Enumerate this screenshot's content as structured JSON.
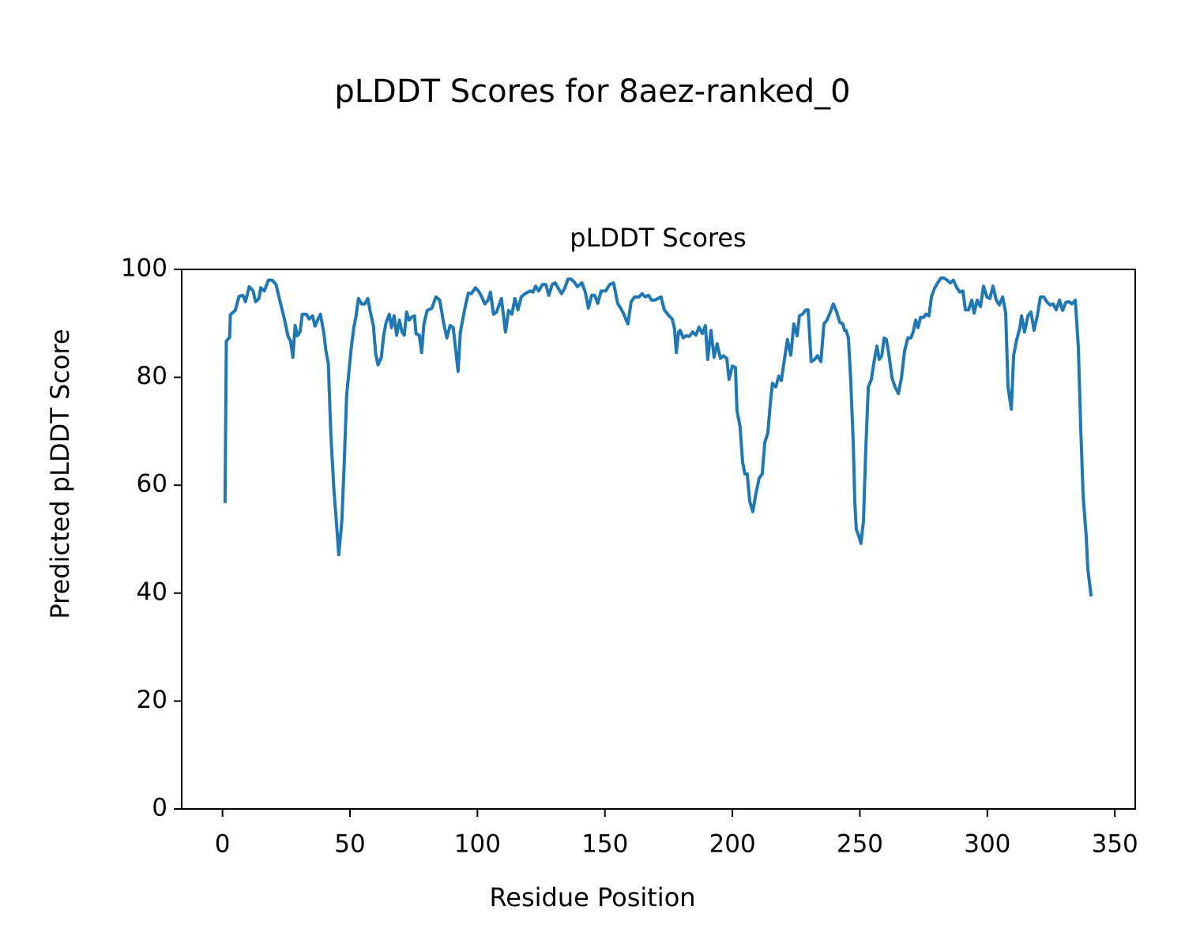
{
  "chart_data": {
    "type": "line",
    "title": "pLDDT Scores for 8aez-ranked_0",
    "subtitle": "pLDDT Scores",
    "xlabel": "Residue Position",
    "ylabel": "Predicted pLDDT Score",
    "xlim": [
      -16,
      358
    ],
    "xticks": [
      0,
      50,
      100,
      150,
      200,
      250,
      300,
      350
    ],
    "ylim": [
      0,
      100
    ],
    "yticks": [
      0,
      20,
      40,
      60,
      80,
      100
    ],
    "series": [
      {
        "color": "#1f77b4",
        "x": [
          1,
          1.5,
          2.8,
          3.1,
          5,
          6.5,
          8,
          9,
          10.5,
          12,
          13,
          14.3,
          15,
          16.4,
          18,
          19.5,
          21,
          22.6,
          24.2,
          25.7,
          26.7,
          27.6,
          28.5,
          29.4,
          30.4,
          31.3,
          32.9,
          34,
          35.3,
          36.3,
          37.5,
          38.4,
          39.7,
          40.6,
          41.5,
          42.5,
          43.7,
          45,
          45.6,
          46.8,
          47.7,
          48.7,
          49.6,
          50.5,
          51.5,
          52.4,
          53.3,
          54.6,
          55.8,
          57,
          58,
          59.2,
          60.1,
          61,
          62.3,
          63.2,
          64.2,
          65.4,
          66.3,
          67.3,
          68.3,
          69.4,
          70.4,
          71.3,
          72.2,
          73.2,
          74.1,
          75.3,
          75.9,
          77.2,
          78.1,
          79,
          80.3,
          82.1,
          83.7,
          85.2,
          86.8,
          88,
          89.3,
          90.5,
          92.4,
          93.3,
          95.2,
          96.4,
          97.6,
          99.2,
          100.4,
          101.7,
          102.9,
          104.2,
          105.1,
          106.3,
          107.5,
          109.4,
          111,
          112.2,
          113.5,
          114.7,
          115.9,
          117.2,
          118.7,
          120.6,
          121.8,
          122.8,
          124,
          125.5,
          126.8,
          128,
          129.3,
          130.5,
          131.7,
          133,
          134.2,
          135.5,
          136.7,
          137.9,
          139.2,
          141,
          142.3,
          143.5,
          144.8,
          146,
          147.2,
          148.5,
          150.3,
          151.9,
          153.4,
          155,
          156.2,
          157.4,
          159,
          160.3,
          161.6,
          163.4,
          164.6,
          165.8,
          167.1,
          168.3,
          169.5,
          170.8,
          172,
          173.3,
          175.1,
          176.4,
          177.3,
          178,
          178.9,
          179.5,
          180.7,
          181.9,
          183.2,
          184.4,
          185.7,
          186.9,
          188.2,
          189.4,
          190.3,
          191.6,
          192.8,
          194,
          195.3,
          196.5,
          197.8,
          198.7,
          200,
          201.2,
          201.8,
          203,
          204,
          204.9,
          205.8,
          206.8,
          208,
          209.2,
          210.5,
          211.7,
          212.7,
          213.9,
          214.9,
          215.7,
          217,
          218.2,
          219.2,
          220.4,
          221.6,
          222.9,
          224.1,
          225.4,
          226.3,
          227.5,
          228.8,
          229.7,
          230.9,
          232.2,
          233.4,
          234.7,
          235.9,
          237.1,
          238.4,
          239.6,
          240.9,
          242.1,
          243.3,
          244,
          244.6,
          245.5,
          246.4,
          247.4,
          248,
          248.6,
          249.5,
          250.4,
          251.4,
          252.3,
          253.3,
          254.5,
          255.7,
          256.7,
          257.6,
          258.6,
          259.5,
          260.4,
          261.4,
          262.6,
          263.8,
          265.1,
          266.3,
          267.5,
          268.8,
          270,
          270.9,
          271.9,
          272.8,
          273.8,
          275,
          275.9,
          277.1,
          278.1,
          279.3,
          280.5,
          281.8,
          283,
          284.2,
          285.5,
          286.7,
          288,
          289.2,
          290.4,
          291.4,
          292.6,
          293.9,
          294.8,
          296,
          297.3,
          298.5,
          299.8,
          301,
          302.2,
          303.5,
          304.7,
          306,
          307.2,
          308.1,
          309.4,
          310.3,
          311.5,
          312.8,
          313.4,
          314.6,
          315.9,
          317.1,
          318.3,
          319.6,
          320.8,
          322.1,
          323.3,
          324.6,
          325.8,
          327,
          328.3,
          329.5,
          330.8,
          332,
          333.2,
          334.5,
          335.7,
          336.6,
          337.6,
          338.8,
          339.4,
          340.7
        ],
        "values": [
          56.7,
          86.7,
          87.4,
          91.6,
          92.4,
          95,
          95.2,
          94,
          96.8,
          96,
          94,
          94.6,
          96.6,
          96,
          98,
          98,
          97.2,
          94,
          91,
          87.6,
          86.7,
          83.7,
          89.6,
          87.7,
          88.4,
          91.7,
          91.7,
          90.8,
          91.4,
          89.5,
          90.8,
          91.7,
          88.4,
          84.8,
          82.6,
          69.4,
          59.2,
          51.1,
          47.1,
          53.3,
          63.5,
          76.7,
          81.1,
          85.5,
          89.2,
          91.4,
          94.6,
          93.6,
          93.6,
          94.6,
          92.1,
          89.5,
          84.3,
          82.3,
          83.7,
          87.7,
          90.2,
          91.7,
          89.2,
          91.4,
          87.8,
          90.6,
          88.4,
          87.8,
          92.1,
          90.6,
          91.1,
          91.4,
          88.1,
          87.8,
          84.6,
          89.9,
          92.4,
          92.8,
          94.9,
          94.3,
          89.9,
          87.3,
          89.6,
          89.2,
          81.1,
          88.4,
          93.1,
          95.6,
          95.5,
          96.6,
          96,
          94.9,
          93.6,
          94.3,
          95.8,
          91.7,
          92.1,
          94.6,
          88.4,
          92.4,
          91.7,
          94.6,
          92.5,
          94.9,
          95.5,
          96,
          95.8,
          96.9,
          96,
          97.2,
          97.2,
          95.2,
          97.2,
          97.5,
          96.5,
          95.5,
          96.5,
          98.2,
          98.2,
          97.7,
          96.8,
          97.5,
          95.8,
          92.8,
          95.2,
          95.2,
          93.7,
          96,
          96,
          97.2,
          97.5,
          93.7,
          92.8,
          91.7,
          89.9,
          94,
          94.9,
          94.9,
          95.5,
          94.9,
          95.2,
          94.3,
          94.3,
          94.6,
          94.9,
          92.5,
          91.4,
          90.8,
          89,
          84.6,
          88.4,
          88.7,
          87.3,
          87.7,
          87.6,
          88.4,
          87.8,
          89.3,
          88.1,
          89.6,
          83.3,
          88.7,
          83.7,
          86.2,
          83.5,
          84,
          83.5,
          79.6,
          82.1,
          81.8,
          73.8,
          70.9,
          64.3,
          62.1,
          62.1,
          57,
          55.1,
          58.4,
          61.3,
          62.1,
          67.9,
          69.7,
          75.3,
          78.9,
          78.2,
          80.2,
          79.4,
          83.3,
          87,
          84.1,
          89.9,
          87.7,
          91.4,
          91.7,
          92.5,
          92.5,
          82.9,
          83.3,
          84,
          82.9,
          89.9,
          90.6,
          92.1,
          93.6,
          92.1,
          90.2,
          89.9,
          88.7,
          88.7,
          87.3,
          79.6,
          67.9,
          57,
          51.8,
          50.7,
          49.2,
          53.3,
          66.5,
          78.2,
          79.6,
          83.3,
          85.8,
          83.3,
          84,
          87.3,
          87,
          84.1,
          79.9,
          78.2,
          77,
          79.9,
          84.8,
          87.3,
          87.3,
          88.4,
          90.6,
          89.2,
          91.1,
          91.1,
          91.7,
          91.4,
          95,
          96.5,
          97.5,
          98.4,
          98.4,
          98,
          97.5,
          98,
          96.6,
          95.8,
          96,
          92.5,
          92.5,
          94.3,
          91.9,
          94.3,
          93.1,
          96.9,
          94.9,
          94.6,
          96.9,
          94.3,
          93.4,
          94.9,
          91.9,
          78.2,
          74.1,
          84,
          87,
          89.2,
          91.4,
          88.4,
          91.4,
          92.1,
          88.7,
          91.4,
          94.9,
          94.9,
          94,
          93.4,
          93.6,
          92.5,
          94.3,
          92.4,
          93.9,
          94,
          93.6,
          94.3,
          85.5,
          70.9,
          57.7,
          50.4,
          44.5,
          39.4
        ]
      }
    ]
  }
}
